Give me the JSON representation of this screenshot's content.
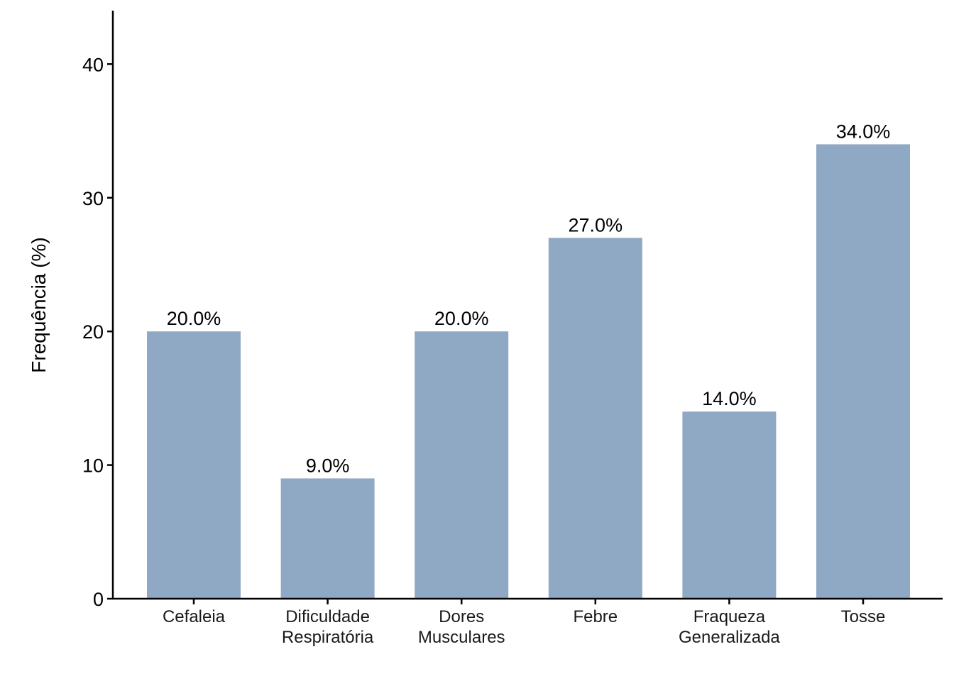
{
  "chart_data": {
    "type": "bar",
    "categories": [
      [
        "Cefaleia"
      ],
      [
        "Dificuldade",
        "Respiratória"
      ],
      [
        "Dores",
        "Musculares"
      ],
      [
        "Febre"
      ],
      [
        "Fraqueza",
        "Generalizada"
      ],
      [
        "Tosse"
      ]
    ],
    "values": [
      20.0,
      9.0,
      20.0,
      27.0,
      14.0,
      34.0
    ],
    "data_labels": [
      "20.0%",
      "9.0%",
      "20.0%",
      "27.0%",
      "14.0%",
      "34.0%"
    ],
    "title": "",
    "xlabel": "",
    "ylabel": "Frequência (%)",
    "ylim": [
      0,
      44
    ],
    "yticks": [
      0,
      10,
      20,
      30,
      40
    ],
    "grid": false,
    "legend": "none",
    "colors": {
      "bar": "#8FA8C3",
      "axis": "#000000"
    }
  }
}
